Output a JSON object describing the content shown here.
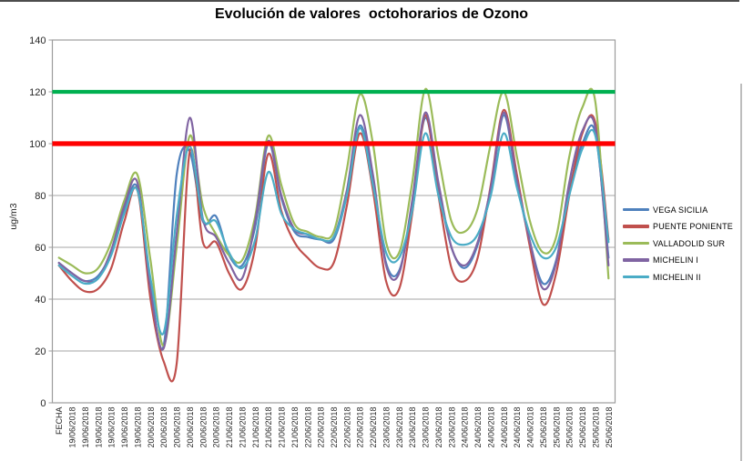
{
  "chart_data": {
    "type": "line",
    "title": "Evolución de valores  octohorarios de Ozono",
    "ylabel": "ug/m3",
    "xlabel": "FECHA",
    "ylim": [
      0,
      140
    ],
    "yticks": [
      0,
      20,
      40,
      60,
      80,
      100,
      120,
      140
    ],
    "grid": "horizontal",
    "legend_position": "right",
    "categories": [
      "FECHA",
      "19/06/2018",
      "19/06/2018",
      "19/06/2018",
      "19/06/2018",
      "19/06/2018",
      "19/06/2018",
      "20/06/2018",
      "20/06/2018",
      "20/06/2018",
      "20/06/2018",
      "20/06/2018",
      "20/06/2018",
      "21/06/2018",
      "21/06/2018",
      "21/06/2018",
      "21/06/2018",
      "21/06/2018",
      "21/06/2018",
      "22/06/2018",
      "22/06/2018",
      "22/06/2018",
      "22/06/2018",
      "22/06/2018",
      "22/06/2018",
      "23/06/2018",
      "23/06/2018",
      "23/06/2018",
      "23/06/2018",
      "23/06/2018",
      "23/06/2018",
      "24/06/2018",
      "24/06/2018",
      "24/06/2018",
      "24/06/2018",
      "24/06/2018",
      "24/06/2018",
      "25/06/2018",
      "25/06/2018",
      "25/06/2018",
      "25/06/2018",
      "25/06/2018",
      "25/06/2018"
    ],
    "series": [
      {
        "name": "VEGA SICILIA",
        "color": "#4F81BD",
        "values": [
          54,
          50,
          47,
          49,
          58,
          74,
          83,
          45,
          22,
          88,
          97,
          70,
          72,
          57,
          53,
          68,
          100,
          79,
          66,
          64,
          63,
          63,
          80,
          107,
          86,
          54,
          51,
          76,
          110,
          83,
          60,
          52,
          61,
          82,
          111,
          85,
          62,
          46,
          55,
          82,
          100,
          104,
          56
        ]
      },
      {
        "name": "PUENTE PONIENTE",
        "color": "#C0504D",
        "values": [
          53,
          47,
          43,
          44,
          52,
          70,
          82,
          40,
          16,
          15,
          97,
          62,
          62,
          50,
          44,
          60,
          96,
          74,
          62,
          56,
          52,
          54,
          76,
          104,
          82,
          47,
          44,
          73,
          111,
          80,
          52,
          47,
          56,
          84,
          113,
          88,
          60,
          38,
          50,
          80,
          104,
          108,
          63
        ]
      },
      {
        "name": "VALLADOLID SUR",
        "color": "#9BBB59",
        "values": [
          56,
          53,
          50,
          52,
          62,
          78,
          88,
          55,
          22,
          60,
          103,
          76,
          65,
          57,
          55,
          72,
          103,
          84,
          69,
          66,
          64,
          66,
          90,
          119,
          100,
          62,
          58,
          85,
          121,
          95,
          70,
          66,
          75,
          100,
          120,
          95,
          70,
          58,
          64,
          95,
          114,
          116,
          48
        ]
      },
      {
        "name": "MICHELIN I",
        "color": "#8064A2",
        "values": [
          54,
          50,
          47,
          48,
          59,
          76,
          85,
          44,
          21,
          65,
          110,
          71,
          64,
          54,
          48,
          70,
          101,
          80,
          67,
          65,
          63,
          64,
          82,
          111,
          88,
          53,
          50,
          78,
          112,
          85,
          60,
          53,
          62,
          83,
          112,
          86,
          62,
          44,
          54,
          85,
          105,
          106,
          53
        ]
      },
      {
        "name": "MICHELIN II",
        "color": "#4BACC6",
        "values": [
          53,
          49,
          46,
          48,
          57,
          73,
          82,
          48,
          27,
          72,
          99,
          71,
          70,
          58,
          52,
          63,
          89,
          73,
          67,
          65,
          63,
          64,
          80,
          106,
          84,
          58,
          56,
          74,
          104,
          80,
          64,
          61,
          65,
          80,
          104,
          83,
          65,
          56,
          60,
          80,
          98,
          103,
          62
        ]
      }
    ],
    "thresholds": [
      {
        "name": "limit-120",
        "value": 120,
        "color": "#00B050"
      },
      {
        "name": "limit-100",
        "value": 100,
        "color": "#FF0000"
      }
    ],
    "colors": {
      "grid": "#A6A6A6",
      "plot_border": "#9C9C9C",
      "tick_text": "#262626"
    }
  }
}
